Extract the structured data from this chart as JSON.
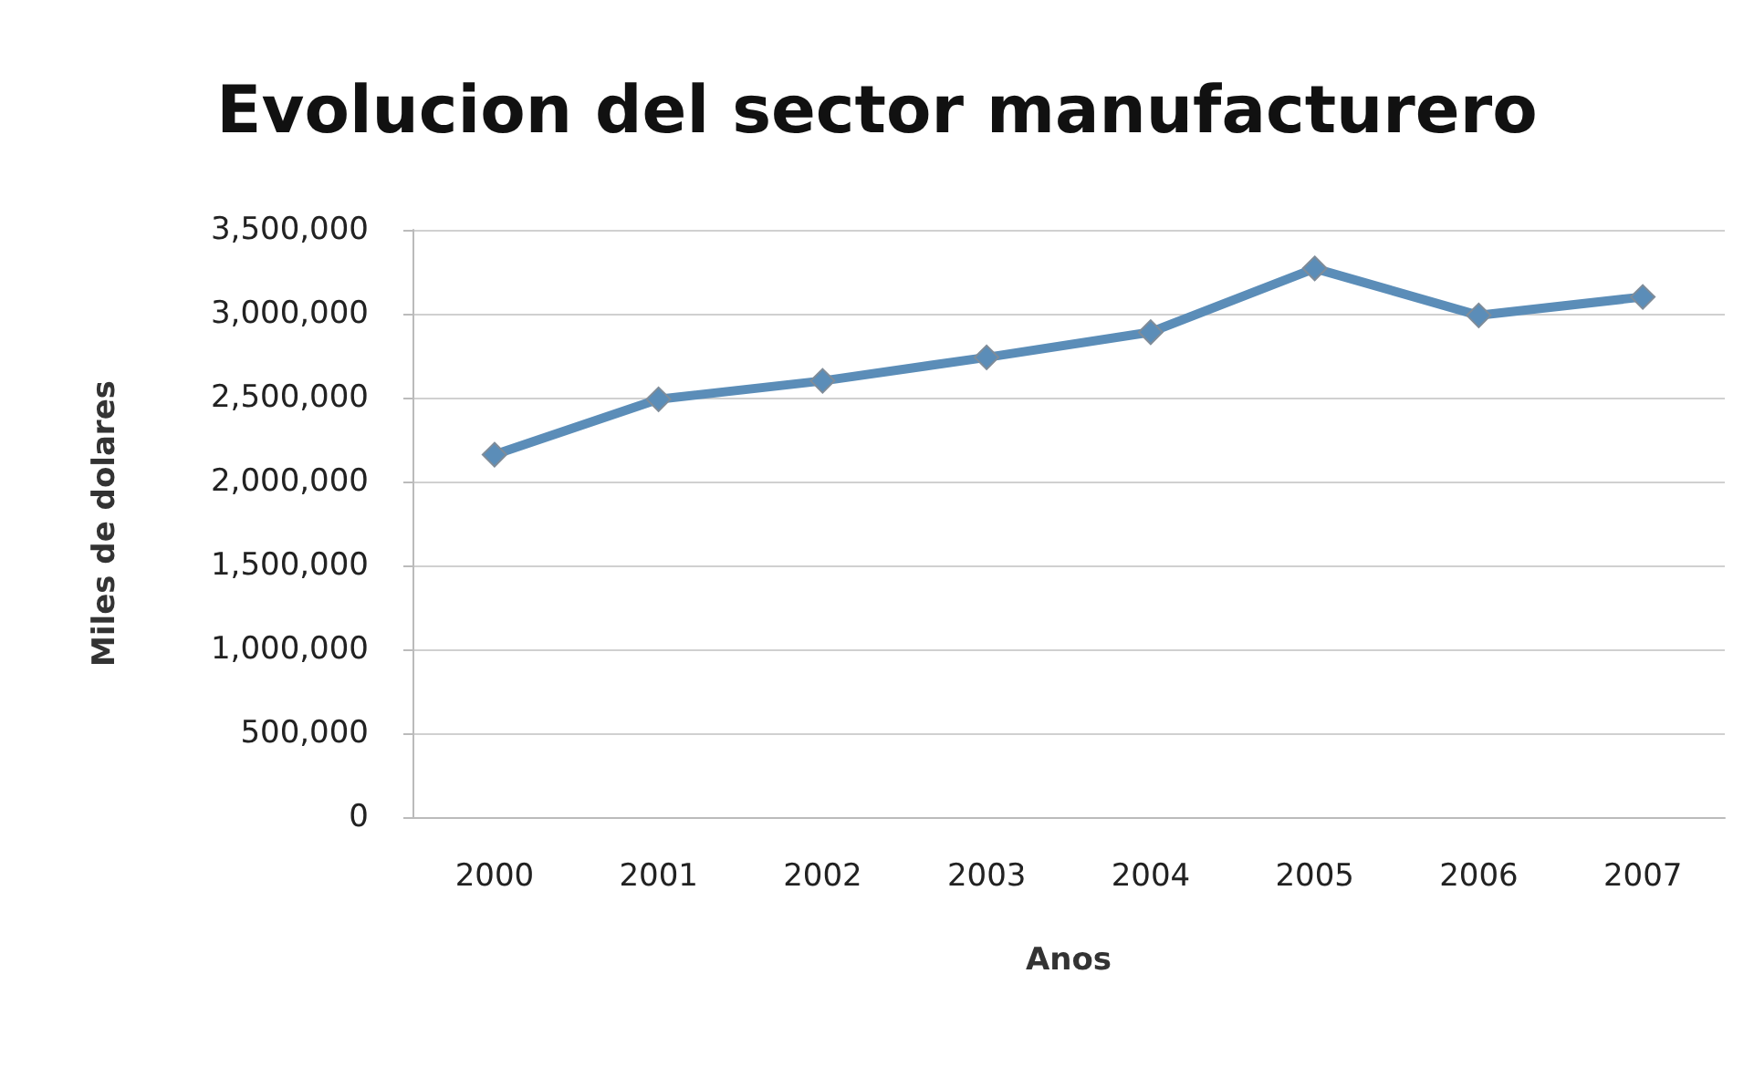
{
  "chart_data": {
    "type": "line",
    "title": "Evolucion del sector manufacturero",
    "xlabel": "Anos",
    "ylabel": "Miles de dolares",
    "categories": [
      "2000",
      "2001",
      "2002",
      "2003",
      "2004",
      "2005",
      "2006",
      "2007"
    ],
    "series": [
      {
        "color": "#5b8db8",
        "values": [
          2160000,
          2490000,
          2600000,
          2740000,
          2890000,
          3270000,
          2990000,
          3100000
        ]
      }
    ],
    "ylim": [
      0,
      3500000
    ],
    "yticks": [
      0,
      {
        "value": 500000,
        "label": "500,000"
      },
      {
        "value": 1000000,
        "label": "1,000,000"
      },
      {
        "value": 1500000,
        "label": "1,500,000"
      },
      {
        "value": 2000000,
        "label": "2,000,000"
      },
      {
        "value": 2500000,
        "label": "2,500,000"
      },
      {
        "value": 3000000,
        "label": "3,000,000"
      },
      {
        "value": 3500000,
        "label": "3,500,000"
      }
    ],
    "grid": "y",
    "marker": "diamond",
    "line_style": "solid"
  }
}
